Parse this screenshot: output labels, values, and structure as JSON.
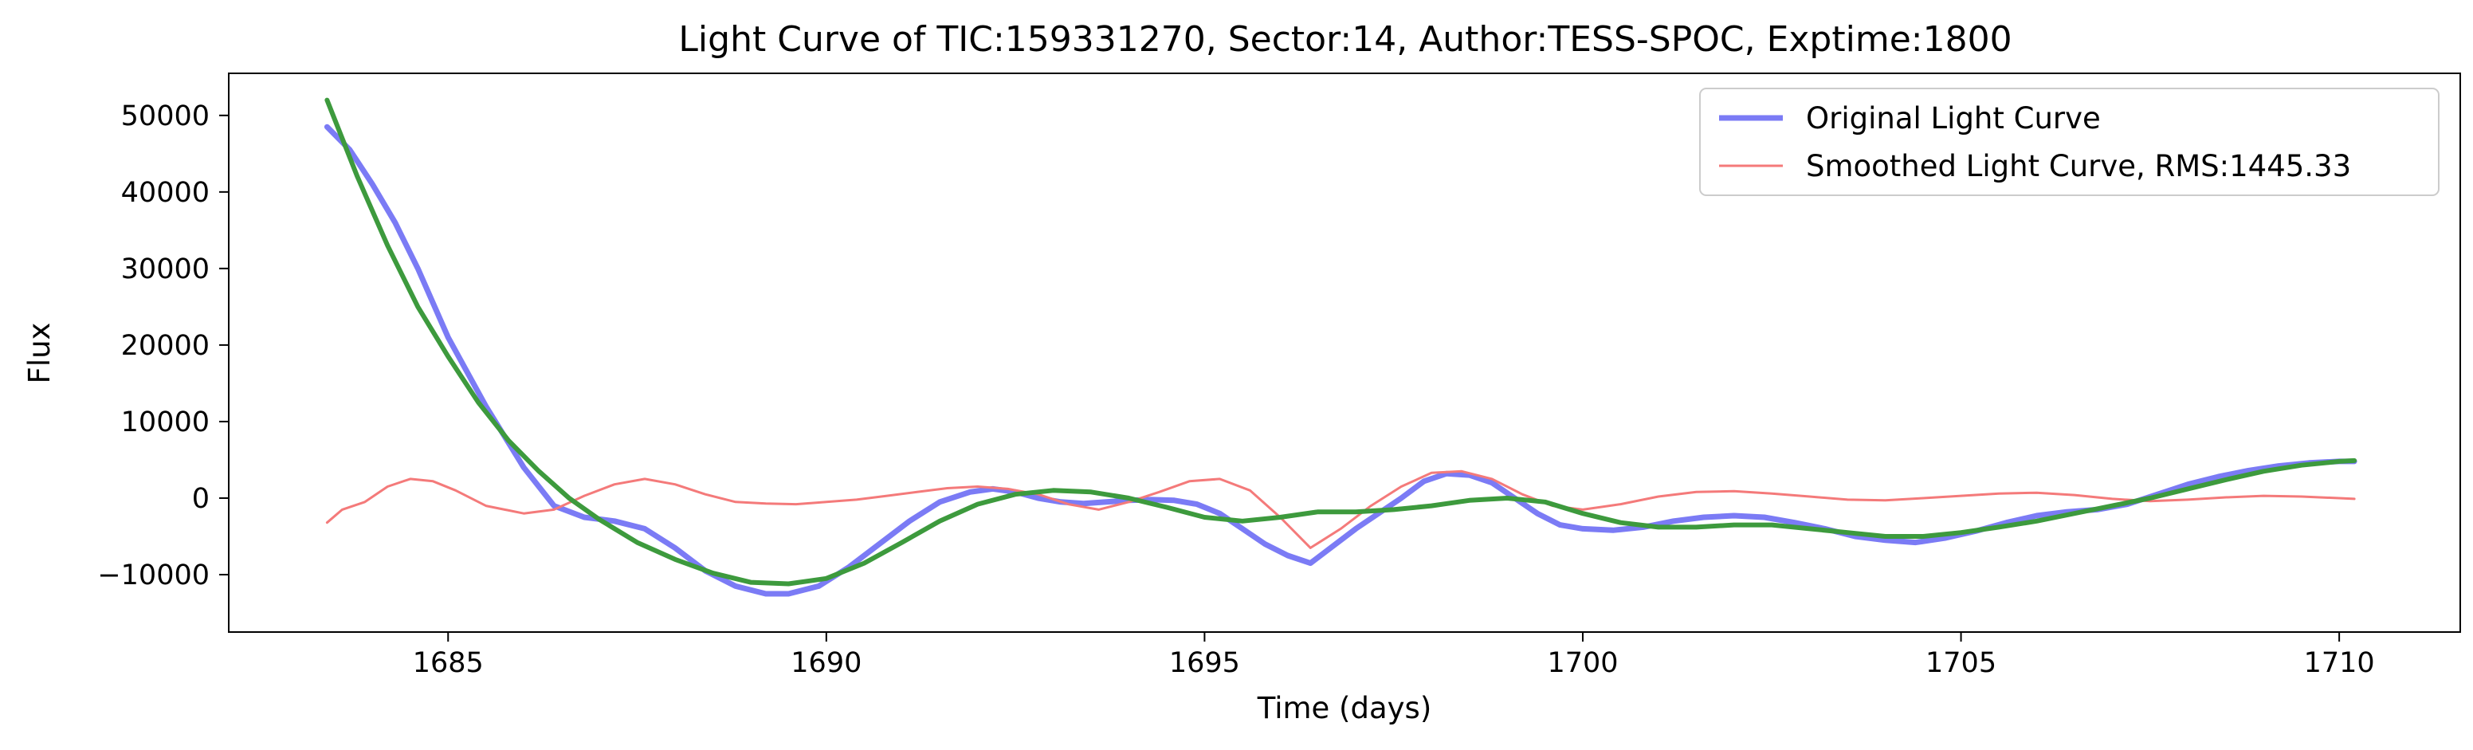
{
  "chart_data": {
    "type": "line",
    "title": "Light Curve of TIC:159331270, Sector:14, Author:TESS-SPOC, Exptime:1800",
    "xlabel": "Time (days)",
    "ylabel": "Flux",
    "xlim": [
      1682.1,
      1711.6
    ],
    "ylim": [
      -17500,
      55500
    ],
    "xticks": [
      1685,
      1690,
      1695,
      1700,
      1705,
      1710
    ],
    "xtick_labels": [
      "1685",
      "1690",
      "1695",
      "1700",
      "1705",
      "1710"
    ],
    "yticks": [
      -10000,
      0,
      10000,
      20000,
      30000,
      40000,
      50000
    ],
    "ytick_labels": [
      "−10000",
      "0",
      "10000",
      "20000",
      "30000",
      "40000",
      "50000"
    ],
    "grid": false,
    "legend_position": "upper right",
    "series": [
      {
        "name": "Original Light Curve",
        "color": "#7b7bf5",
        "x": [
          1683.4,
          1683.7,
          1684.0,
          1684.3,
          1684.6,
          1685.0,
          1685.5,
          1686.0,
          1686.4,
          1686.8,
          1687.2,
          1687.6,
          1688.0,
          1688.4,
          1688.8,
          1689.2,
          1689.5,
          1689.9,
          1690.3,
          1690.7,
          1691.1,
          1691.5,
          1691.9,
          1692.2,
          1692.5,
          1692.8,
          1693.1,
          1693.4,
          1693.7,
          1694.0,
          1694.3,
          1694.6,
          1694.9,
          1695.2,
          1695.5,
          1695.8,
          1696.1,
          1696.4,
          1697.0,
          1697.6,
          1697.9,
          1698.2,
          1698.5,
          1698.8,
          1699.1,
          1699.4,
          1699.7,
          1700.0,
          1700.4,
          1700.8,
          1701.2,
          1701.6,
          1702.0,
          1702.4,
          1702.8,
          1703.2,
          1703.6,
          1704.0,
          1704.4,
          1704.8,
          1705.2,
          1705.6,
          1706.0,
          1706.4,
          1706.8,
          1707.2,
          1707.6,
          1708.0,
          1708.4,
          1708.8,
          1709.2,
          1709.6,
          1710.0,
          1710.2
        ],
        "y": [
          48500,
          45500,
          41000,
          36000,
          30000,
          21000,
          12000,
          4000,
          -1000,
          -2500,
          -3000,
          -4000,
          -6500,
          -9500,
          -11500,
          -12500,
          -12500,
          -11500,
          -9000,
          -6000,
          -3000,
          -500,
          800,
          1200,
          800,
          0,
          -500,
          -700,
          -500,
          -300,
          -200,
          -300,
          -800,
          -2000,
          -4000,
          -6000,
          -7500,
          -8500,
          -4000,
          0,
          2200,
          3200,
          3000,
          2000,
          0,
          -2000,
          -3500,
          -4000,
          -4200,
          -3800,
          -3000,
          -2500,
          -2300,
          -2500,
          -3200,
          -4000,
          -5000,
          -5500,
          -5800,
          -5200,
          -4300,
          -3200,
          -2300,
          -1800,
          -1500,
          -800,
          500,
          1800,
          2800,
          3600,
          4200,
          4600,
          4800,
          4800
        ]
      },
      {
        "name": "Smoothed Light Curve, RMS:1445.33",
        "color": "#f47a7a",
        "x": [
          1683.4,
          1683.6,
          1683.9,
          1684.2,
          1684.5,
          1684.8,
          1685.1,
          1685.5,
          1686.0,
          1686.4,
          1686.8,
          1687.2,
          1687.6,
          1688.0,
          1688.4,
          1688.8,
          1689.2,
          1689.6,
          1690.0,
          1690.4,
          1690.8,
          1691.2,
          1691.6,
          1692.0,
          1692.4,
          1692.8,
          1693.2,
          1693.6,
          1694.0,
          1694.4,
          1694.8,
          1695.2,
          1695.6,
          1696.0,
          1696.4,
          1696.8,
          1697.2,
          1697.6,
          1698.0,
          1698.4,
          1698.8,
          1699.2,
          1699.6,
          1700.0,
          1700.5,
          1701.0,
          1701.5,
          1702.0,
          1702.5,
          1703.0,
          1703.5,
          1704.0,
          1704.5,
          1705.0,
          1705.5,
          1706.0,
          1706.5,
          1707.0,
          1707.5,
          1708.0,
          1708.5,
          1709.0,
          1709.5,
          1710.0,
          1710.2
        ],
        "y": [
          -3200,
          -1500,
          -500,
          1500,
          2500,
          2200,
          1000,
          -1000,
          -2000,
          -1500,
          300,
          1800,
          2500,
          1800,
          500,
          -500,
          -700,
          -800,
          -500,
          -200,
          300,
          800,
          1300,
          1500,
          1200,
          500,
          -800,
          -1500,
          -500,
          800,
          2200,
          2500,
          1000,
          -2500,
          -6500,
          -4000,
          -1000,
          1500,
          3300,
          3500,
          2500,
          500,
          -1000,
          -1500,
          -800,
          200,
          800,
          900,
          600,
          200,
          -200,
          -300,
          0,
          300,
          600,
          700,
          400,
          -100,
          -400,
          -200,
          100,
          300,
          200,
          0,
          -100
        ]
      },
      {
        "name": "",
        "color": "#3d9a3d",
        "x": [
          1683.4,
          1683.8,
          1684.2,
          1684.6,
          1685.0,
          1685.4,
          1685.8,
          1686.2,
          1686.6,
          1687.0,
          1687.5,
          1688.0,
          1688.5,
          1689.0,
          1689.5,
          1690.0,
          1690.5,
          1691.0,
          1691.5,
          1692.0,
          1692.5,
          1693.0,
          1693.5,
          1694.0,
          1694.5,
          1695.0,
          1695.5,
          1696.0,
          1696.5,
          1697.0,
          1697.5,
          1698.0,
          1698.5,
          1699.0,
          1699.5,
          1700.0,
          1700.5,
          1701.0,
          1701.5,
          1702.0,
          1702.5,
          1703.0,
          1703.5,
          1704.0,
          1704.5,
          1705.0,
          1705.5,
          1706.0,
          1706.5,
          1707.0,
          1707.5,
          1708.0,
          1708.5,
          1709.0,
          1709.5,
          1710.0,
          1710.2
        ],
        "y": [
          52000,
          42000,
          33000,
          25000,
          18500,
          12500,
          7500,
          3500,
          0,
          -2800,
          -5800,
          -8000,
          -9800,
          -11000,
          -11200,
          -10500,
          -8500,
          -5800,
          -3000,
          -800,
          500,
          1000,
          800,
          0,
          -1200,
          -2500,
          -3000,
          -2500,
          -1800,
          -1800,
          -1500,
          -1000,
          -300,
          0,
          -500,
          -2000,
          -3200,
          -3800,
          -3800,
          -3500,
          -3500,
          -4000,
          -4500,
          -5000,
          -5000,
          -4500,
          -3800,
          -3000,
          -2000,
          -1000,
          0,
          1200,
          2400,
          3500,
          4300,
          4800,
          4900
        ]
      }
    ]
  }
}
